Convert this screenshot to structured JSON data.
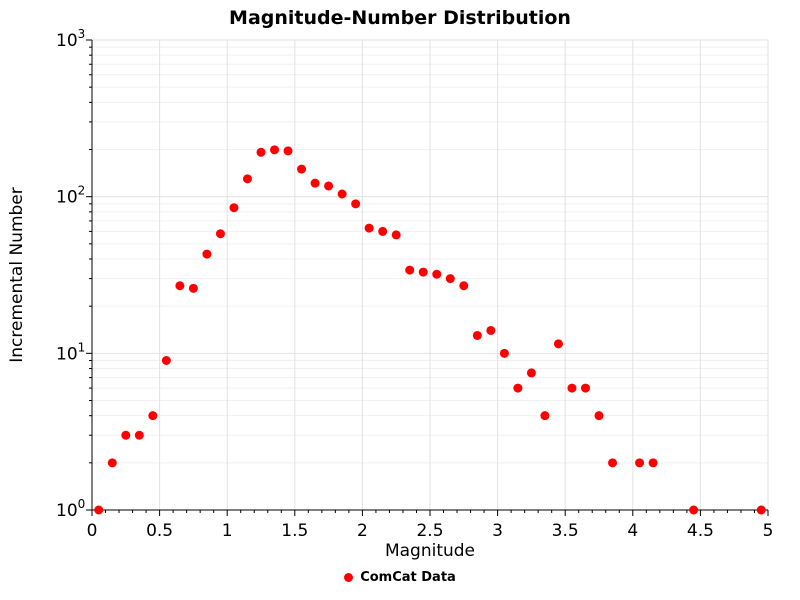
{
  "chart_data": {
    "type": "scatter",
    "title": "Magnitude-Number Distribution",
    "xlabel": "Magnitude",
    "ylabel": "Incremental Number",
    "xlim": [
      0,
      5
    ],
    "ylim": [
      1,
      1000
    ],
    "y_scale": "log",
    "grid": true,
    "x_ticks": [
      0,
      0.5,
      1,
      1.5,
      2,
      2.5,
      3,
      3.5,
      4,
      4.5,
      5
    ],
    "y_tick_exponents": [
      0,
      1,
      2,
      3
    ],
    "legend": {
      "position": "bottom-center",
      "label": "ComCat Data",
      "color": "#ff0000",
      "marker": "circle"
    },
    "series": [
      {
        "name": "ComCat Data",
        "color": "#ff0000",
        "marker": "circle",
        "points": [
          [
            0.05,
            1
          ],
          [
            0.15,
            2
          ],
          [
            0.25,
            3
          ],
          [
            0.35,
            3
          ],
          [
            0.45,
            4
          ],
          [
            0.55,
            9
          ],
          [
            0.65,
            27
          ],
          [
            0.75,
            26
          ],
          [
            0.85,
            43
          ],
          [
            0.95,
            58
          ],
          [
            1.05,
            85
          ],
          [
            1.15,
            130
          ],
          [
            1.25,
            192
          ],
          [
            1.35,
            199
          ],
          [
            1.45,
            196
          ],
          [
            1.55,
            150
          ],
          [
            1.65,
            122
          ],
          [
            1.75,
            117
          ],
          [
            1.85,
            104
          ],
          [
            1.95,
            90
          ],
          [
            2.05,
            63
          ],
          [
            2.15,
            60
          ],
          [
            2.25,
            57
          ],
          [
            2.35,
            34
          ],
          [
            2.45,
            33
          ],
          [
            2.55,
            32
          ],
          [
            2.65,
            30
          ],
          [
            2.75,
            27
          ],
          [
            2.85,
            13
          ],
          [
            2.95,
            14
          ],
          [
            3.05,
            10
          ],
          [
            3.15,
            6
          ],
          [
            3.25,
            7.5
          ],
          [
            3.35,
            4
          ],
          [
            3.45,
            11.5
          ],
          [
            3.55,
            6
          ],
          [
            3.65,
            6
          ],
          [
            3.75,
            4
          ],
          [
            3.85,
            2
          ],
          [
            4.05,
            2
          ],
          [
            4.15,
            2
          ],
          [
            4.45,
            1
          ],
          [
            4.95,
            1
          ]
        ]
      }
    ]
  }
}
